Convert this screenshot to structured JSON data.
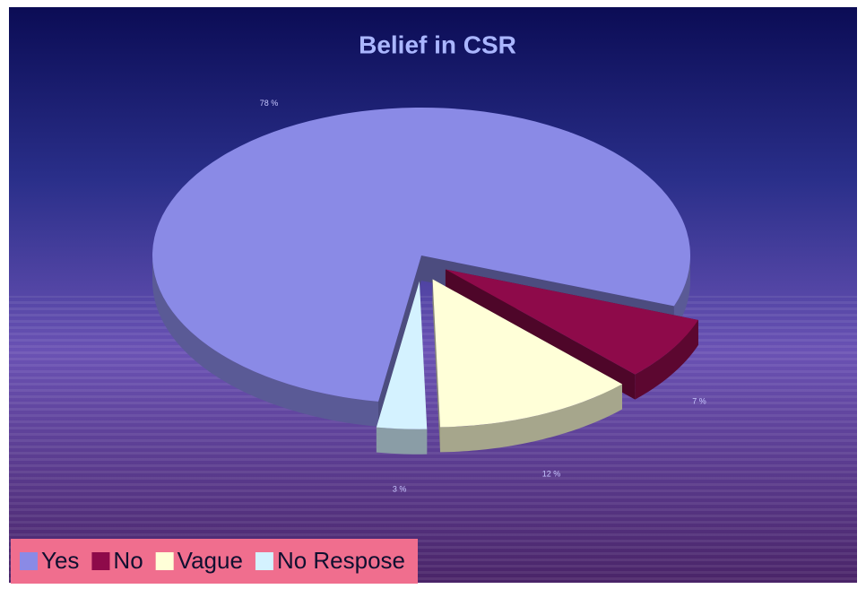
{
  "chart_data": {
    "type": "pie",
    "title": "Belief in CSR",
    "categories": [
      "Yes",
      "No",
      "Vague",
      "No Respose"
    ],
    "values": [
      78,
      7,
      12,
      3
    ],
    "value_labels": [
      "78 %",
      "7 %",
      "12 %",
      "3 %"
    ],
    "colors": [
      "#8a8ae6",
      "#8e0a4a",
      "#ffffd8",
      "#d4f2ff"
    ],
    "legend": "bottom-left"
  }
}
